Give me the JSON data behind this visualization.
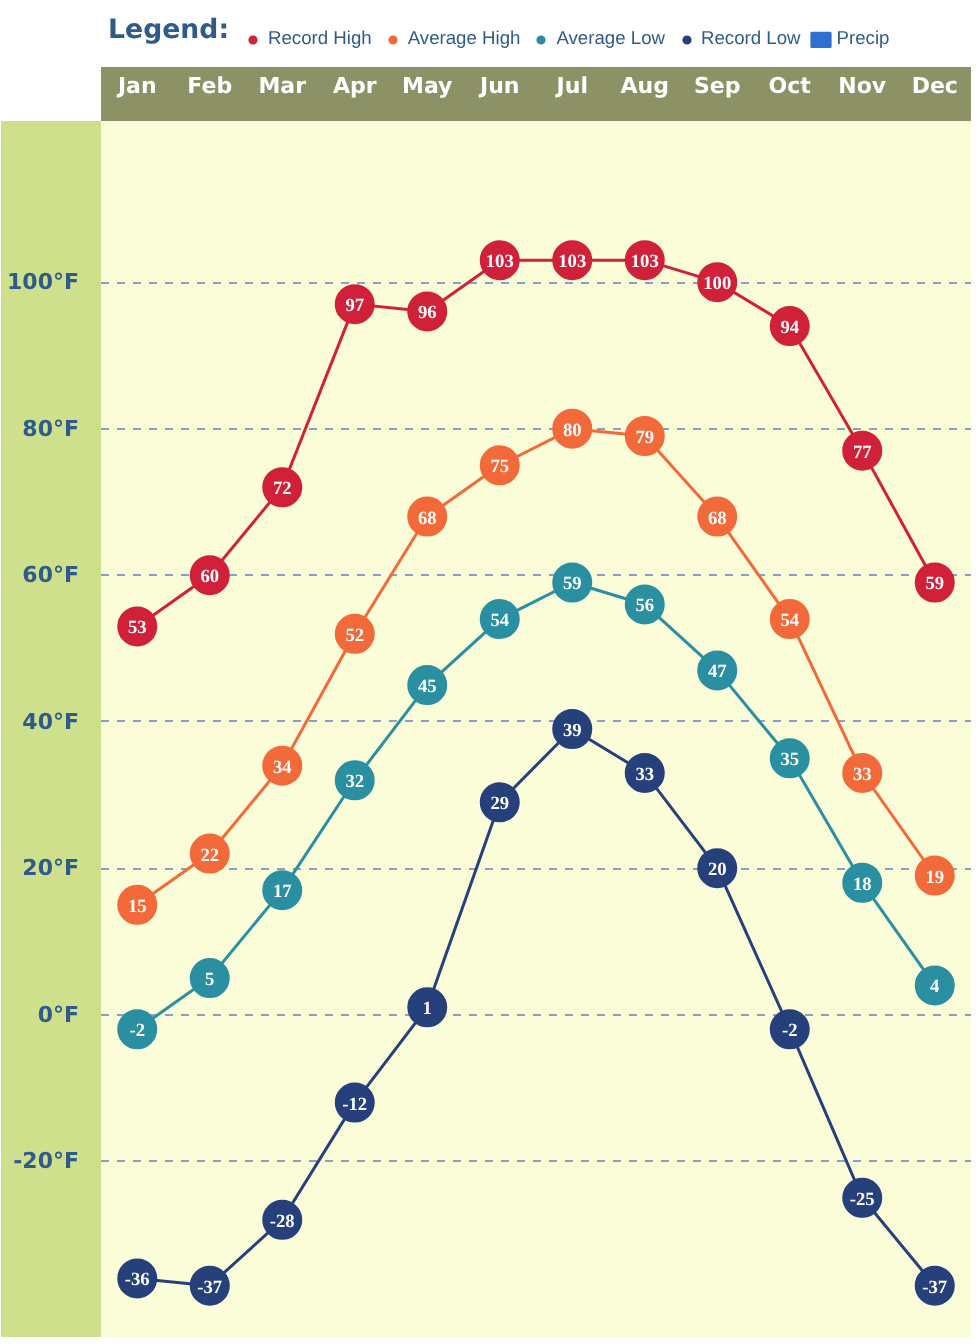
{
  "chart_data": {
    "type": "line",
    "legend_title": "Legend:",
    "categories": [
      "Jan",
      "Feb",
      "Mar",
      "Apr",
      "May",
      "Jun",
      "Jul",
      "Aug",
      "Sep",
      "Oct",
      "Nov",
      "Dec"
    ],
    "series": [
      {
        "name": "Record High",
        "color": "#d0203a",
        "values": [
          53,
          60,
          72,
          97,
          96,
          103,
          103,
          103,
          100,
          94,
          77,
          59
        ]
      },
      {
        "name": "Average High",
        "color": "#f26a3a",
        "values": [
          15,
          22,
          34,
          52,
          68,
          75,
          80,
          79,
          68,
          54,
          33,
          19
        ]
      },
      {
        "name": "Average Low",
        "color": "#2a8fa0",
        "values": [
          -2,
          5,
          17,
          32,
          45,
          54,
          59,
          56,
          47,
          35,
          18,
          4
        ]
      },
      {
        "name": "Record Low",
        "color": "#26407c",
        "values": [
          -36,
          -37,
          -28,
          -12,
          1,
          29,
          39,
          33,
          20,
          -2,
          -25,
          -37
        ]
      },
      {
        "name": "Precip",
        "type": "bar",
        "color": "#2f6fd0",
        "values": [
          null,
          null,
          null,
          null,
          null,
          null,
          null,
          null,
          null,
          null,
          null,
          null
        ]
      }
    ],
    "ylim": [
      -44,
      122
    ],
    "yticks": [
      {
        "value": -20,
        "label": "-20°F"
      },
      {
        "value": 0,
        "label": "0°F"
      },
      {
        "value": 20,
        "label": "20°F"
      },
      {
        "value": 40,
        "label": "40°F"
      },
      {
        "value": 60,
        "label": "60°F"
      },
      {
        "value": 80,
        "label": "80°F"
      },
      {
        "value": 100,
        "label": "100°F"
      }
    ],
    "grid": "y",
    "legend": "top",
    "marker": "circle",
    "line_style": "solid",
    "data_labels": true
  }
}
